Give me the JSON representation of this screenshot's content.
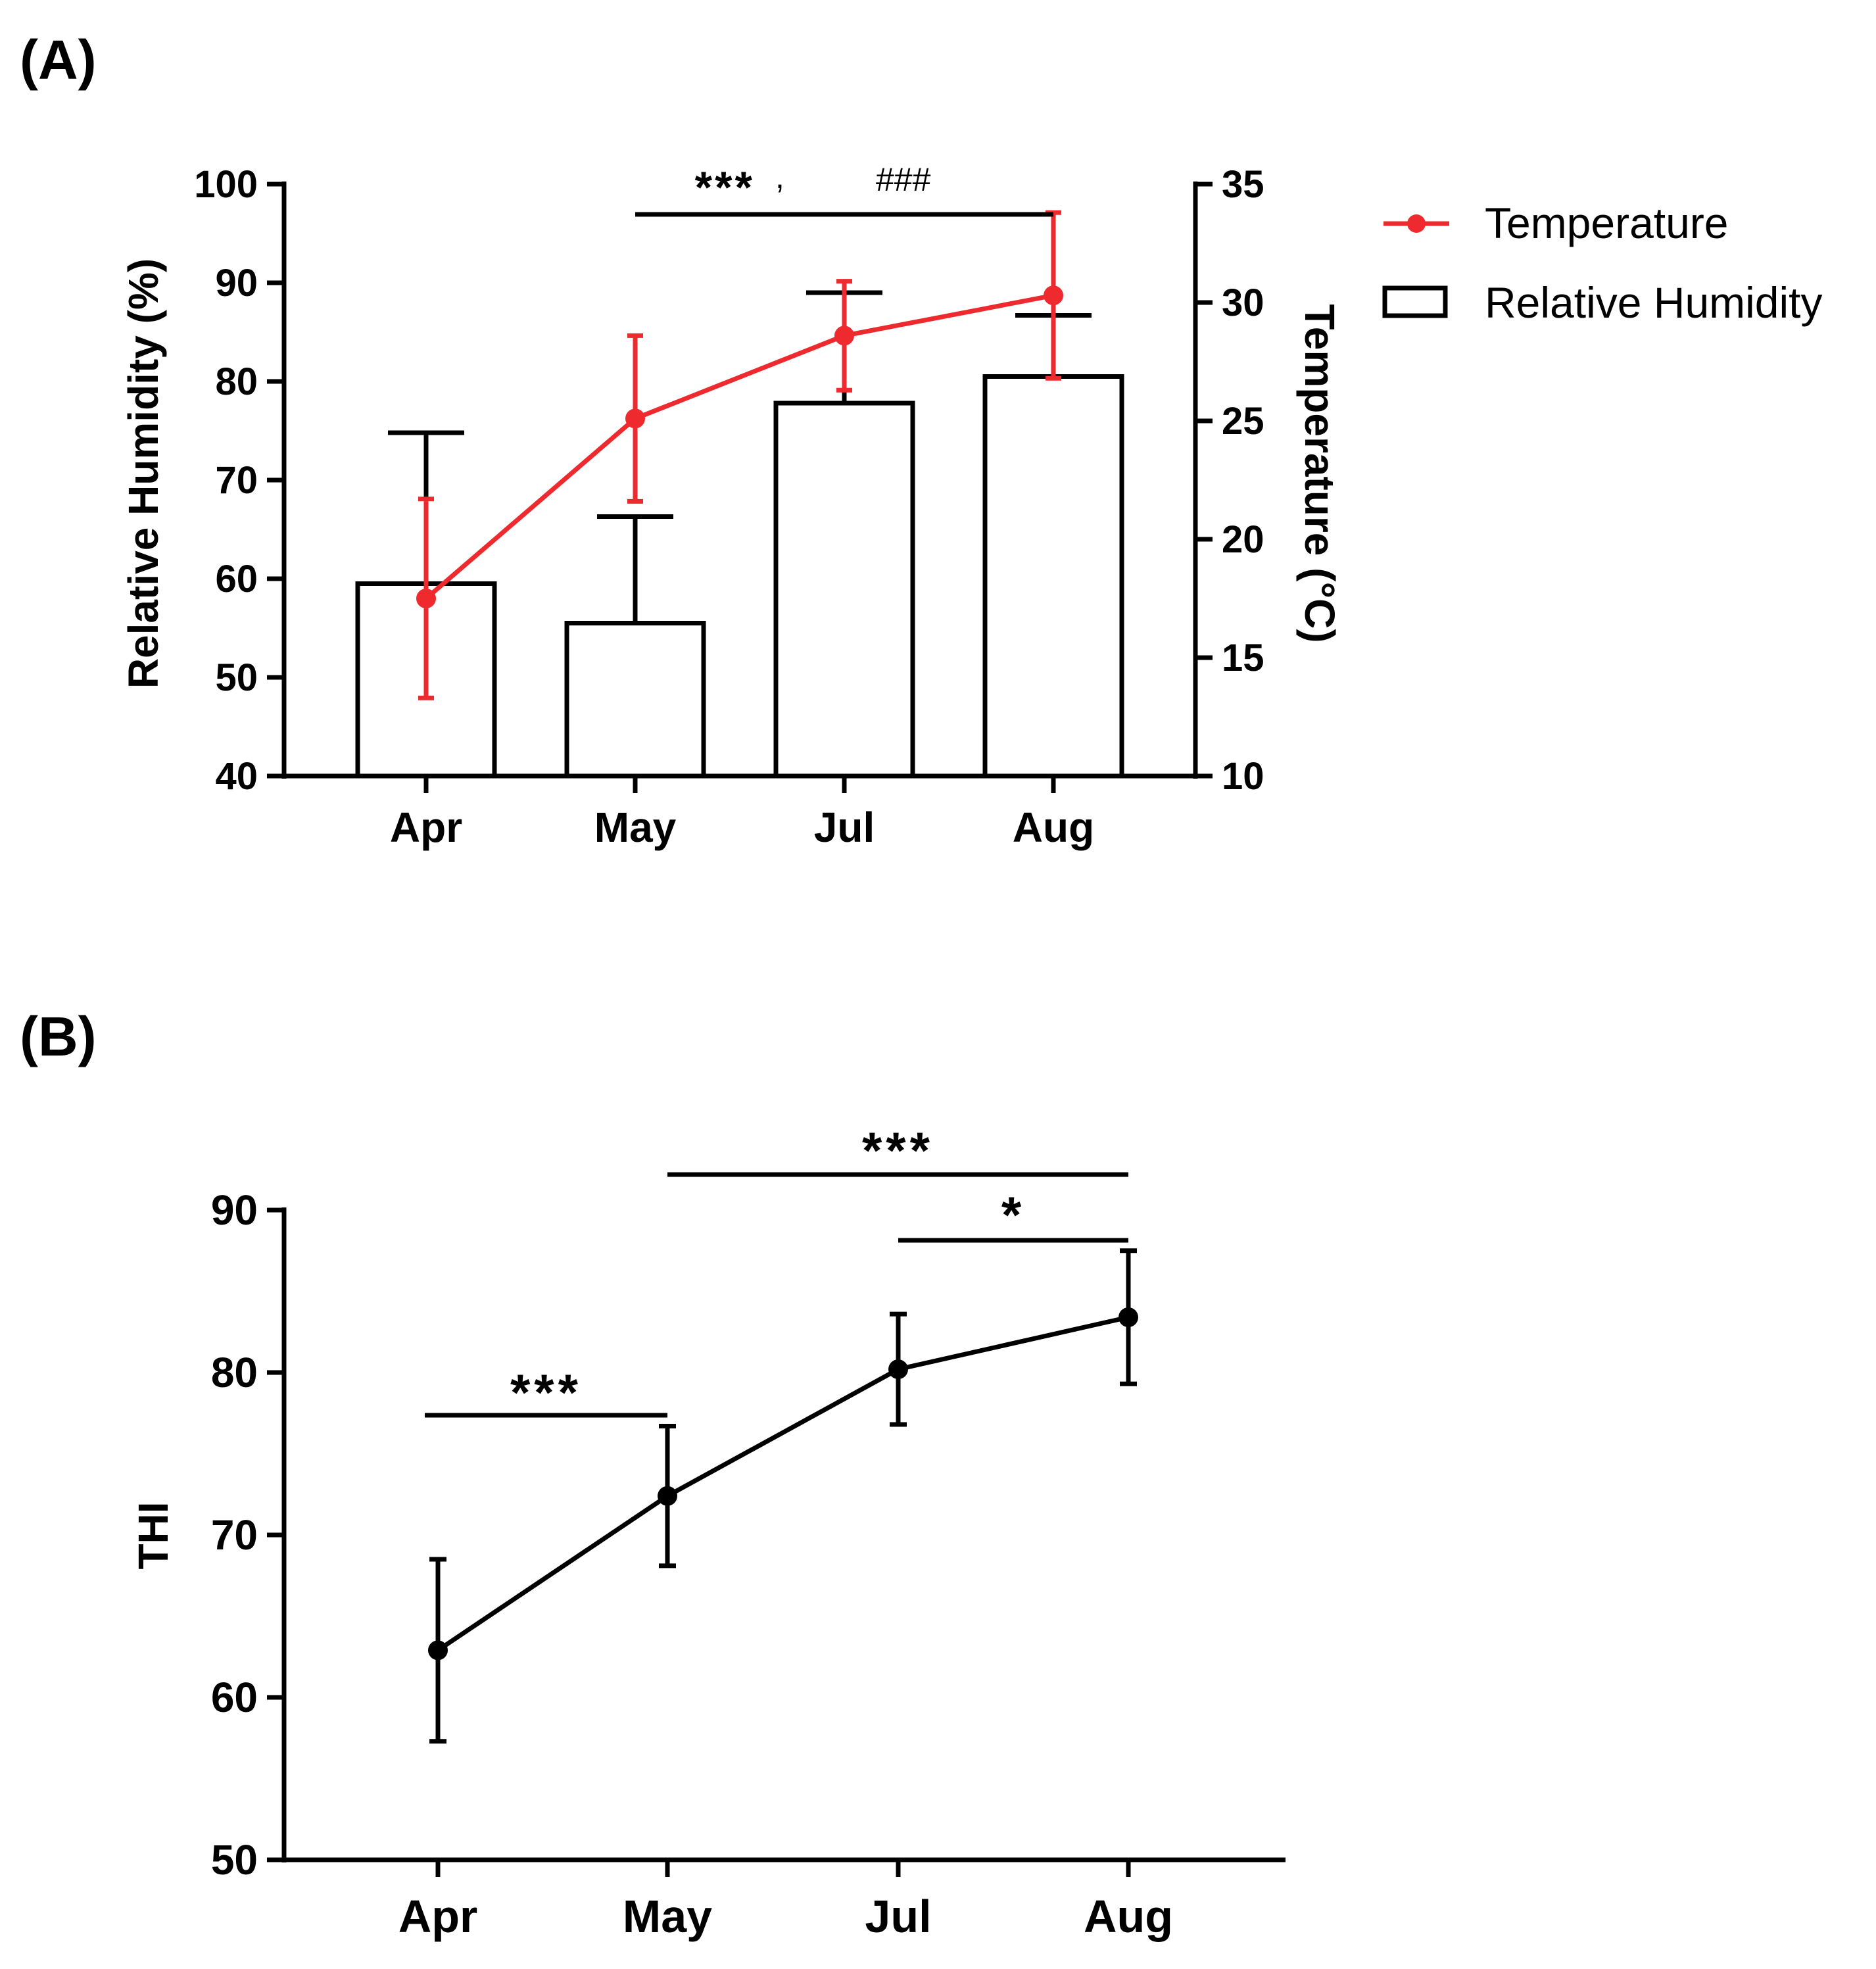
{
  "chart_data": [
    {
      "panel_label": "(A)",
      "type": "bar",
      "categories": [
        "Apr",
        "May",
        "Jul",
        "Aug"
      ],
      "ylabel": "Relative Humidity (%)",
      "y2label": "Temperature (°C)",
      "ylim": [
        40,
        100
      ],
      "yticks": [
        40,
        50,
        60,
        70,
        80,
        90,
        100
      ],
      "y2lim": [
        10,
        35
      ],
      "y2ticks": [
        10,
        15,
        20,
        25,
        30,
        35
      ],
      "series": [
        {
          "name": "Relative Humidity",
          "type": "bar",
          "axis": "left",
          "values": [
            59.5,
            55.5,
            77.8,
            80.5
          ],
          "error": [
            15.3,
            10.8,
            11.2,
            6.2
          ]
        },
        {
          "name": "Temperature",
          "type": "line",
          "axis": "right",
          "values": [
            17.5,
            25.1,
            28.6,
            30.3
          ],
          "error": [
            4.2,
            3.5,
            2.3,
            3.5
          ]
        }
      ],
      "annotations": [
        {
          "from": "May",
          "to": "Aug",
          "stars": "***",
          "hashes": "###"
        }
      ],
      "colors": {
        "temperature": "#ee2a2f",
        "bars": "#000000"
      },
      "legend": {
        "position": "right",
        "items": [
          "Temperature",
          "Relative Humidity"
        ]
      },
      "grid": false
    },
    {
      "panel_label": "(B)",
      "type": "line",
      "categories": [
        "Apr",
        "May",
        "Jul",
        "Aug"
      ],
      "ylabel": "THI",
      "ylim": [
        50,
        90
      ],
      "yticks": [
        50,
        60,
        70,
        80,
        90
      ],
      "series": [
        {
          "name": "",
          "values": [
            62.9,
            72.4,
            80.2,
            83.4
          ],
          "error": [
            5.6,
            4.3,
            3.4,
            4.1
          ]
        }
      ],
      "annotations": [
        {
          "from": "Apr",
          "to": "May",
          "stars": "***"
        },
        {
          "from": "May",
          "to": "Aug",
          "stars": "***"
        },
        {
          "from": "Jul",
          "to": "Aug",
          "stars": "*"
        }
      ],
      "colors": {
        "line": "#000000"
      },
      "grid": false
    }
  ]
}
